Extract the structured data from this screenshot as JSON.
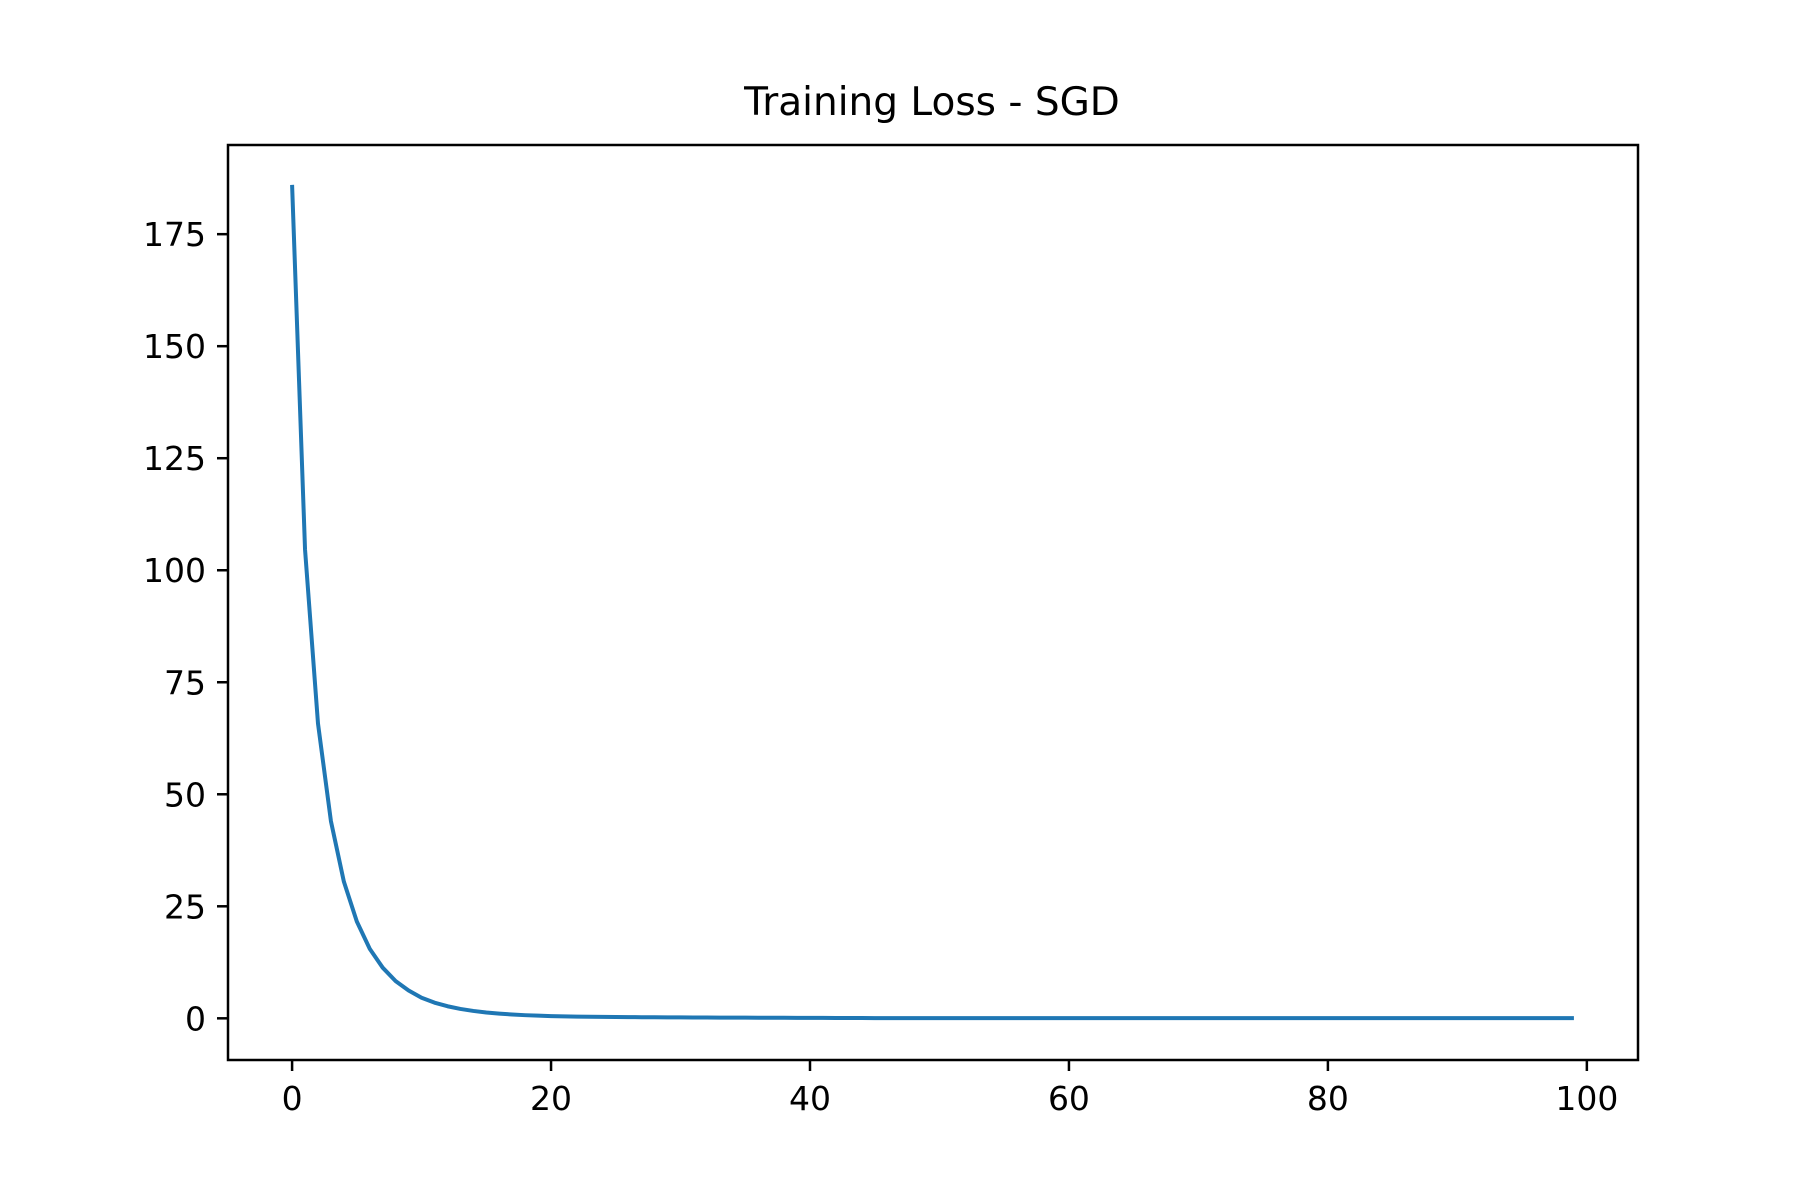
{
  "chart_data": {
    "type": "line",
    "title": "Training Loss - SGD",
    "xlabel": "",
    "ylabel": "",
    "xlim": [
      -4.95,
      103.95
    ],
    "ylim": [
      -9.3,
      194.9
    ],
    "x_ticks": [
      0,
      20,
      40,
      60,
      80,
      100
    ],
    "y_ticks": [
      0,
      25,
      50,
      75,
      100,
      125,
      150,
      175
    ],
    "grid": false,
    "legend": "none",
    "line_color": "#1f77b4",
    "series": [
      {
        "x": [
          0,
          1,
          2,
          3,
          4,
          5,
          6,
          7,
          8,
          9,
          10,
          11,
          12,
          13,
          14,
          15,
          16,
          17,
          18,
          19,
          20,
          21,
          22,
          23,
          24,
          25,
          26,
          27,
          28,
          29,
          30,
          31,
          32,
          33,
          34,
          35,
          36,
          37,
          38,
          39,
          40,
          41,
          42,
          43,
          44,
          45,
          46,
          47,
          48,
          49,
          50,
          51,
          52,
          53,
          54,
          55,
          56,
          57,
          58,
          59,
          60,
          61,
          62,
          63,
          64,
          65,
          66,
          67,
          68,
          69,
          70,
          71,
          72,
          73,
          74,
          75,
          76,
          77,
          78,
          79,
          80,
          81,
          82,
          83,
          84,
          85,
          86,
          87,
          88,
          89,
          90,
          91,
          92,
          93,
          94,
          95,
          96,
          97,
          98,
          99
        ],
        "y": [
          186.0,
          104.6,
          65.8,
          44.0,
          30.5,
          21.6,
          15.5,
          11.3,
          8.3,
          6.2,
          4.6,
          3.5,
          2.7,
          2.1,
          1.65,
          1.3,
          1.05,
          0.85,
          0.7,
          0.6,
          0.5,
          0.44,
          0.39,
          0.35,
          0.32,
          0.29,
          0.27,
          0.25,
          0.23,
          0.21,
          0.2,
          0.19,
          0.18,
          0.17,
          0.16,
          0.15,
          0.14,
          0.13,
          0.12,
          0.11,
          0.1,
          0.09,
          0.08,
          0.07,
          0.06,
          0.05,
          0.05,
          0.05,
          0.05,
          0.05,
          0.05,
          0.05,
          0.05,
          0.05,
          0.05,
          0.05,
          0.05,
          0.05,
          0.05,
          0.05,
          0.05,
          0.05,
          0.05,
          0.05,
          0.05,
          0.05,
          0.05,
          0.05,
          0.05,
          0.05,
          0.05,
          0.05,
          0.05,
          0.05,
          0.05,
          0.05,
          0.05,
          0.05,
          0.05,
          0.05,
          0.05,
          0.05,
          0.05,
          0.05,
          0.05,
          0.05,
          0.05,
          0.05,
          0.05,
          0.05,
          0.05,
          0.05,
          0.05,
          0.05,
          0.05,
          0.05,
          0.05,
          0.05,
          0.05,
          0.05
        ]
      }
    ]
  }
}
